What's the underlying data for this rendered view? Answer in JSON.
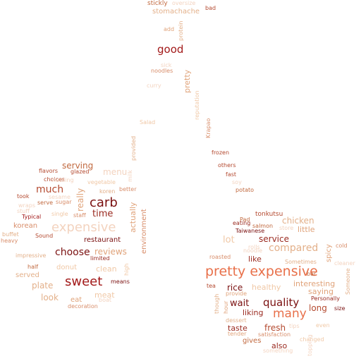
{
  "words": [
    {
      "text": "stickly",
      "color": "#c1693f"
    },
    {
      "text": "oversize",
      "color": "#f3d3bf"
    },
    {
      "text": "bad",
      "color": "#b44a30"
    },
    {
      "text": "stomachache",
      "color": "#e3b08a"
    },
    {
      "text": "add",
      "color": "#e0a37a"
    },
    {
      "text": "protein",
      "color": "#e3b08a"
    },
    {
      "text": "good",
      "color": "#a21919"
    },
    {
      "text": "sick",
      "color": "#f3d3bf"
    },
    {
      "text": "noodles",
      "color": "#d88d6a"
    },
    {
      "text": "pretty",
      "color": "#e0a37a"
    },
    {
      "text": "curry",
      "color": "#f3d3bf"
    },
    {
      "text": "reputation",
      "color": "#f0c8a6"
    },
    {
      "text": "Salad",
      "color": "#f0c8a6"
    },
    {
      "text": "Krapao",
      "color": "#d88d6a"
    },
    {
      "text": "provided",
      "color": "#e3b08a"
    },
    {
      "text": "frozen",
      "color": "#b44a30"
    },
    {
      "text": "others",
      "color": "#b44a30"
    },
    {
      "text": "serving",
      "color": "#c1693f"
    },
    {
      "text": "menu",
      "color": "#f3d3bf"
    },
    {
      "text": "flavors",
      "color": "#b44a30"
    },
    {
      "text": "glazed",
      "color": "#b44a30"
    },
    {
      "text": "milk",
      "color": "#f3d3bf"
    },
    {
      "text": "fast",
      "color": "#b44a30"
    },
    {
      "text": "choices",
      "color": "#b44a30"
    },
    {
      "text": "really",
      "color": "#e0a37a"
    },
    {
      "text": "vegetable",
      "color": "#f0c8a6"
    },
    {
      "text": "soy",
      "color": "#f3d3bf"
    },
    {
      "text": "potato",
      "color": "#c1693f"
    },
    {
      "text": "much",
      "color": "#b44a30"
    },
    {
      "text": "carb",
      "color": "#7a1010"
    },
    {
      "text": "koren",
      "color": "#e3b08a"
    },
    {
      "text": "better",
      "color": "#d88d6a"
    },
    {
      "text": "took",
      "color": "#b44a30"
    },
    {
      "text": "sesame",
      "color": "#f3d3bf"
    },
    {
      "text": "wraps",
      "color": "#f3d3bf"
    },
    {
      "text": "serve",
      "color": "#c1693f"
    },
    {
      "text": "sugar",
      "color": "#d88d6a"
    },
    {
      "text": "stuff",
      "color": "#f3d3bf"
    },
    {
      "text": "single",
      "color": "#f0c8a6"
    },
    {
      "text": "time",
      "color": "#9a2a20"
    },
    {
      "text": "actually",
      "color": "#e0a37a"
    },
    {
      "text": "environment",
      "color": "#d88d6a"
    },
    {
      "text": "tonkutsu",
      "color": "#b44a30"
    },
    {
      "text": "Pad",
      "color": "#c1693f"
    },
    {
      "text": "chicken",
      "color": "#e3b08a"
    },
    {
      "text": "Typical",
      "color": "#a21919"
    },
    {
      "text": "staff",
      "color": "#d88d6a"
    },
    {
      "text": "expensive",
      "color": "#f3d3bf"
    },
    {
      "text": "korean",
      "color": "#d88d6a"
    },
    {
      "text": "buffet",
      "color": "#e3b08a"
    },
    {
      "text": "Sound",
      "color": "#b44a30"
    },
    {
      "text": "Taiwanese",
      "color": "#7a1010"
    },
    {
      "text": "store",
      "color": "#f3d3bf"
    },
    {
      "text": "little",
      "color": "#e0a37a"
    },
    {
      "text": "heavy",
      "color": "#d88d6a"
    },
    {
      "text": "restaurant",
      "color": "#7a1010"
    },
    {
      "text": "lot",
      "color": "#f0c8a6"
    },
    {
      "text": "service",
      "color": "#9a2a20"
    },
    {
      "text": "compared",
      "color": "#e3b08a"
    },
    {
      "text": "spicy",
      "color": "#e0a37a"
    },
    {
      "text": "cold",
      "color": "#d88d6a"
    },
    {
      "text": "choose",
      "color": "#7a1010"
    },
    {
      "text": "reviews",
      "color": "#e0a37a"
    },
    {
      "text": "impressive",
      "color": "#e3b08a"
    },
    {
      "text": "rolls",
      "color": "#f3d3bf"
    },
    {
      "text": "like",
      "color": "#9a2a20"
    },
    {
      "text": "Sometimes",
      "color": "#e3b08a"
    },
    {
      "text": "half",
      "color": "#c1693f"
    },
    {
      "text": "donut",
      "color": "#f0c8a6"
    },
    {
      "text": "limited",
      "color": "#9a2a20"
    },
    {
      "text": "clean",
      "color": "#f0c8a6"
    },
    {
      "text": "high",
      "color": "#f0c8a6"
    },
    {
      "text": "roasted",
      "color": "#d88d6a"
    },
    {
      "text": "cleaner",
      "color": "#f3d3bf"
    },
    {
      "text": "served",
      "color": "#e3b08a"
    },
    {
      "text": "pretty expensive",
      "color": "#e8704a"
    },
    {
      "text": "means",
      "color": "#7a1010"
    },
    {
      "text": "sweet",
      "color": "#a21919"
    },
    {
      "text": "plate",
      "color": "#e3b08a"
    },
    {
      "text": "interesting",
      "color": "#e0a37a"
    },
    {
      "text": "bar",
      "color": "#c1693f"
    },
    {
      "text": "Someone",
      "color": "#e3b08a"
    },
    {
      "text": "tea",
      "color": "#b44a30"
    },
    {
      "text": "rice",
      "color": "#7a1010"
    },
    {
      "text": "healthy",
      "color": "#f0c8a6"
    },
    {
      "text": "saying",
      "color": "#e0a37a"
    },
    {
      "text": "meat",
      "color": "#f0c8a6"
    },
    {
      "text": "boat",
      "color": "#f3d3bf"
    },
    {
      "text": "look",
      "color": "#e3b08a"
    },
    {
      "text": "eat",
      "color": "#e0a37a"
    },
    {
      "text": "quality",
      "color": "#7a1010"
    },
    {
      "text": "wait",
      "color": "#7a1010"
    },
    {
      "text": "provide",
      "color": "#e0a37a"
    },
    {
      "text": "Personally",
      "color": "#9a2a20"
    },
    {
      "text": "decoration",
      "color": "#d88d6a"
    },
    {
      "text": "though",
      "color": "#e3b08a"
    },
    {
      "text": "long",
      "color": "#b44a30"
    },
    {
      "text": "size",
      "color": "#7a1010"
    },
    {
      "text": "many",
      "color": "#e8704a"
    },
    {
      "text": "liking",
      "color": "#9a2a20"
    },
    {
      "text": "hour",
      "color": "#e0a37a"
    },
    {
      "text": "dessert",
      "color": "#e3b08a"
    },
    {
      "text": "even",
      "color": "#f0c8a6"
    },
    {
      "text": "taste",
      "color": "#9a2a20"
    },
    {
      "text": "fresh",
      "color": "#b44a30"
    },
    {
      "text": "tender",
      "color": "#e0a37a"
    },
    {
      "text": "satisfaction",
      "color": "#d88d6a"
    },
    {
      "text": "gives",
      "color": "#c1693f"
    },
    {
      "text": "changed",
      "color": "#f0c8a6"
    },
    {
      "text": "also",
      "color": "#9a2a20"
    },
    {
      "text": "topping",
      "color": "#f3d3bf"
    },
    {
      "text": "something",
      "color": "#f3d3bf"
    },
    {
      "text": "eating",
      "color": "#9a2a20"
    },
    {
      "text": "salmon",
      "color": "#c1693f"
    },
    {
      "text": "noodle",
      "color": "#f3d3bf"
    },
    {
      "text": "nothing",
      "color": "#f3d3bf"
    },
    {
      "text": "tips",
      "color": "#f3d3bf"
    }
  ]
}
